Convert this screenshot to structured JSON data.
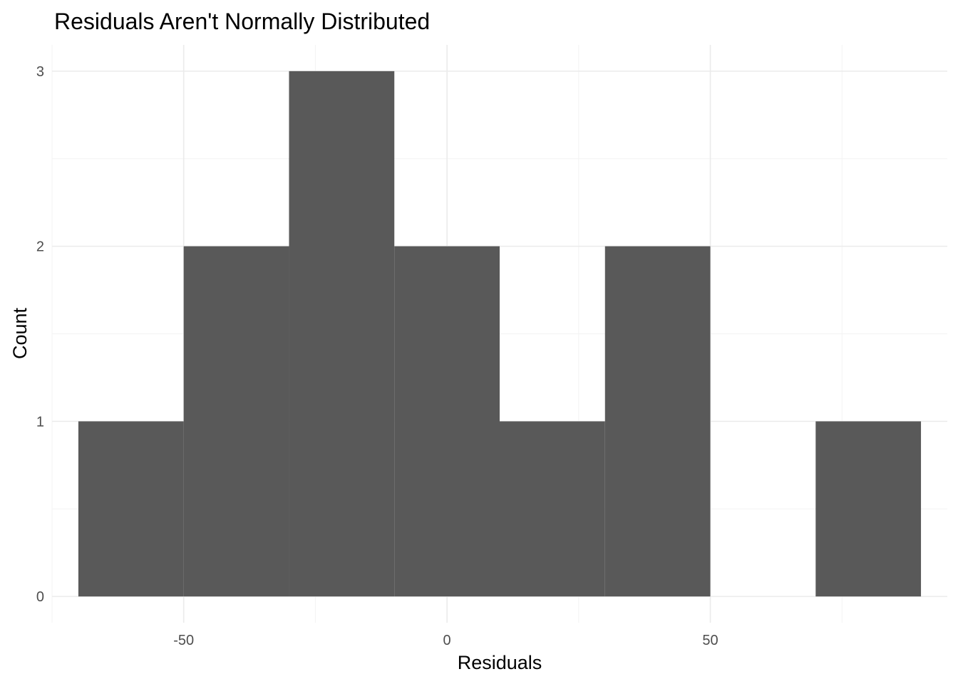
{
  "chart_data": {
    "type": "bar",
    "title": "Residuals Aren't Normally Distributed",
    "xlabel": "Residuals",
    "ylabel": "Count",
    "bins": [
      {
        "x0": -70,
        "x1": -50,
        "count": 1
      },
      {
        "x0": -50,
        "x1": -30,
        "count": 2
      },
      {
        "x0": -30,
        "x1": -10,
        "count": 3
      },
      {
        "x0": -10,
        "x1": 10,
        "count": 2
      },
      {
        "x0": 10,
        "x1": 30,
        "count": 1
      },
      {
        "x0": 30,
        "x1": 50,
        "count": 2
      },
      {
        "x0": 50,
        "x1": 70,
        "count": 0
      },
      {
        "x0": 70,
        "x1": 90,
        "count": 1
      }
    ],
    "x_ticks": [
      -50,
      0,
      50
    ],
    "y_ticks": [
      0,
      1,
      2,
      3
    ],
    "xlim": [
      -75,
      95
    ],
    "ylim": [
      -0.15,
      3.15
    ],
    "grid": true,
    "bar_color": "#595959"
  }
}
